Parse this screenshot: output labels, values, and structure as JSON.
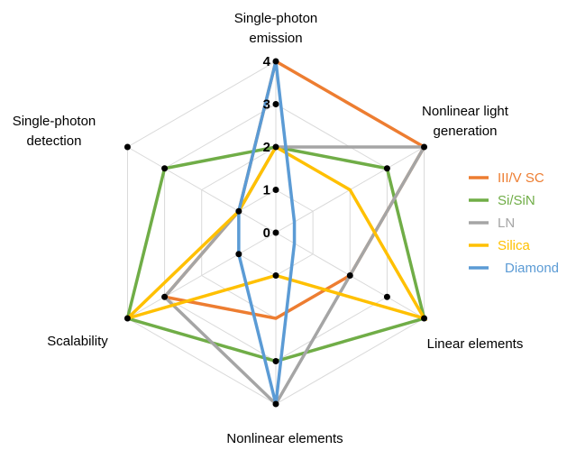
{
  "chart_data": {
    "type": "radar",
    "axes": [
      {
        "label_lines": [
          "Single-photon",
          "emission"
        ]
      },
      {
        "label_lines": [
          "Nonlinear light",
          "generation"
        ]
      },
      {
        "label_lines": [
          "Linear elements"
        ]
      },
      {
        "label_lines": [
          "Nonlinear elements"
        ]
      },
      {
        "label_lines": [
          "Scalability"
        ]
      },
      {
        "label_lines": [
          "Single-photon",
          "detection"
        ]
      }
    ],
    "radial_ticks": [
      "0",
      "1",
      "2",
      "3",
      "4"
    ],
    "range": [
      0,
      4
    ],
    "grid": true,
    "legend_position": "right",
    "series": [
      {
        "name": "III/V SC",
        "color": "#ED7D31",
        "values": [
          4,
          4,
          2,
          2,
          3,
          1
        ]
      },
      {
        "name": "Si/SiN",
        "color": "#70AD47",
        "values": [
          2,
          3,
          4,
          3,
          4,
          3
        ]
      },
      {
        "name": "LN",
        "color": "#A5A5A5",
        "values": [
          2,
          4,
          2,
          4,
          3,
          1
        ]
      },
      {
        "name": "Silica",
        "color": "#FFC000",
        "values": [
          2,
          2,
          4,
          1,
          4,
          1
        ]
      },
      {
        "name": "Diamond",
        "color": "#5B9BD5",
        "values": [
          4,
          0.5,
          0.5,
          4,
          1,
          1
        ]
      }
    ],
    "marker_values": [
      [
        4,
        2,
        1,
        0,
        3
      ],
      [
        3,
        4
      ],
      [
        3,
        4,
        2
      ],
      [
        4,
        1,
        3
      ],
      [
        1,
        3,
        4
      ],
      [
        1,
        3,
        4
      ]
    ]
  }
}
